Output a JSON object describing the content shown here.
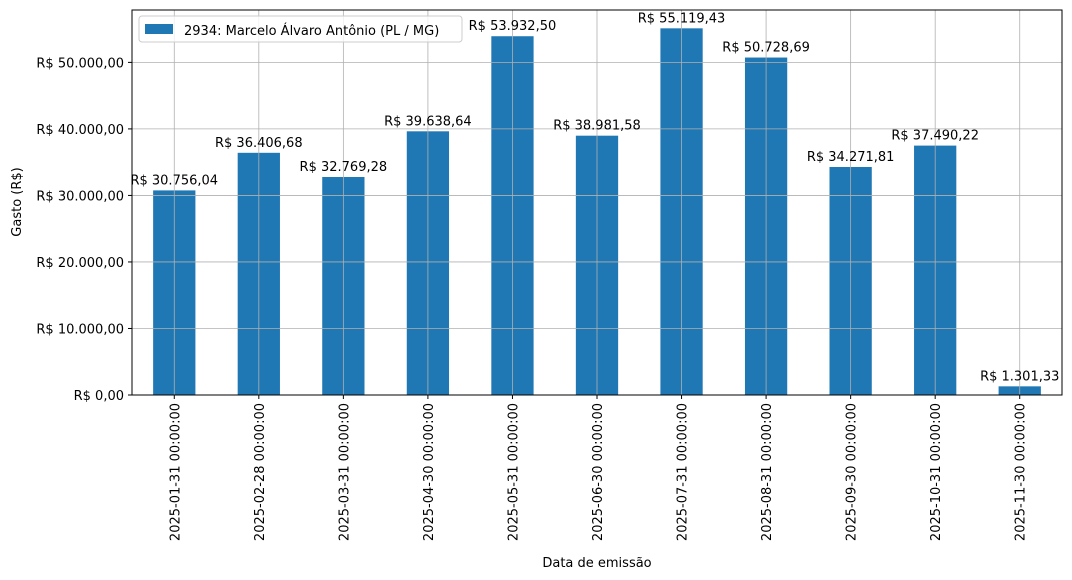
{
  "chart_data": {
    "type": "bar",
    "title": "",
    "xlabel": "Data de emissão",
    "ylabel": "Gasto (R$)",
    "ylim": [
      0,
      57875
    ],
    "grid": true,
    "legend": {
      "placement": "top-left",
      "entries": [
        "2934: Marcelo Álvaro Antônio (PL / MG)"
      ]
    },
    "bar_color": "#1f77b4",
    "categories": [
      "2025-01-31 00:00:00",
      "2025-02-28 00:00:00",
      "2025-03-31 00:00:00",
      "2025-04-30 00:00:00",
      "2025-05-31 00:00:00",
      "2025-06-30 00:00:00",
      "2025-07-31 00:00:00",
      "2025-08-31 00:00:00",
      "2025-09-30 00:00:00",
      "2025-10-31 00:00:00",
      "2025-11-30 00:00:00"
    ],
    "values": [
      30756.04,
      36406.68,
      32769.28,
      39638.64,
      53932.5,
      38981.58,
      55119.43,
      50728.69,
      34271.81,
      37490.22,
      1301.33
    ],
    "data_labels": [
      "R$ 30.756,04",
      "R$ 36.406,68",
      "R$ 32.769,28",
      "R$ 39.638,64",
      "R$ 53.932,50",
      "R$ 38.981,58",
      "R$ 55.119,43",
      "R$ 50.728,69",
      "R$ 34.271,81",
      "R$ 37.490,22",
      "R$ 1.301,33"
    ],
    "yticks": [
      0,
      10000,
      20000,
      30000,
      40000,
      50000
    ],
    "ytick_labels": [
      "R$ 0,00",
      "R$ 10.000,00",
      "R$ 20.000,00",
      "R$ 30.000,00",
      "R$ 40.000,00",
      "R$ 50.000,00"
    ]
  }
}
